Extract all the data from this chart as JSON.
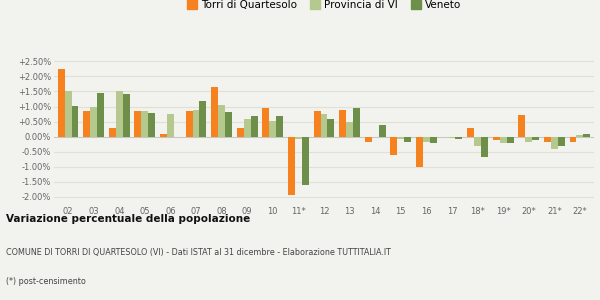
{
  "categories": [
    "02",
    "03",
    "04",
    "05",
    "06",
    "07",
    "08",
    "09",
    "10",
    "11*",
    "12",
    "13",
    "14",
    "15",
    "16",
    "17",
    "18*",
    "19*",
    "20*",
    "21*",
    "22*"
  ],
  "torri": [
    2.25,
    0.85,
    0.3,
    0.85,
    0.1,
    0.85,
    1.65,
    0.27,
    0.95,
    -1.95,
    0.85,
    0.9,
    -0.17,
    -0.6,
    -1.03,
    0.0,
    0.27,
    -0.1,
    0.73,
    -0.17,
    -0.17
  ],
  "provincia": [
    1.5,
    1.0,
    1.5,
    0.85,
    0.75,
    0.9,
    1.05,
    0.6,
    0.52,
    -0.07,
    0.75,
    0.5,
    0.0,
    -0.07,
    -0.18,
    -0.05,
    -0.3,
    -0.2,
    -0.18,
    -0.4,
    0.05
  ],
  "veneto": [
    1.02,
    1.44,
    1.42,
    0.8,
    0.0,
    1.2,
    0.83,
    0.7,
    0.7,
    -1.63,
    0.6,
    0.95,
    0.4,
    -0.18,
    -0.2,
    -0.07,
    -0.68,
    -0.22,
    -0.1,
    -0.3,
    0.08
  ],
  "color_torri": "#f5821f",
  "color_provincia": "#b5c98e",
  "color_veneto": "#6e8f4a",
  "title_bold": "Variazione percentuale della popolazione",
  "subtitle": "COMUNE DI TORRI DI QUARTESOLO (VI) - Dati ISTAT al 31 dicembre - Elaborazione TUTTITALIA.IT",
  "footnote": "(*) post-censimento",
  "ylim": [
    -2.25,
    2.75
  ],
  "yticks": [
    -2.0,
    -1.5,
    -1.0,
    -0.5,
    0.0,
    0.5,
    1.0,
    1.5,
    2.0,
    2.5
  ],
  "ytick_labels": [
    "-2.00%",
    "-1.50%",
    "-1.00%",
    "-0.50%",
    "0.00%",
    "+0.50%",
    "+1.00%",
    "+1.50%",
    "+2.00%",
    "+2.50%"
  ],
  "bg_color": "#f2f2ee",
  "grid_color": "#e0e0d8",
  "bar_width": 0.27
}
